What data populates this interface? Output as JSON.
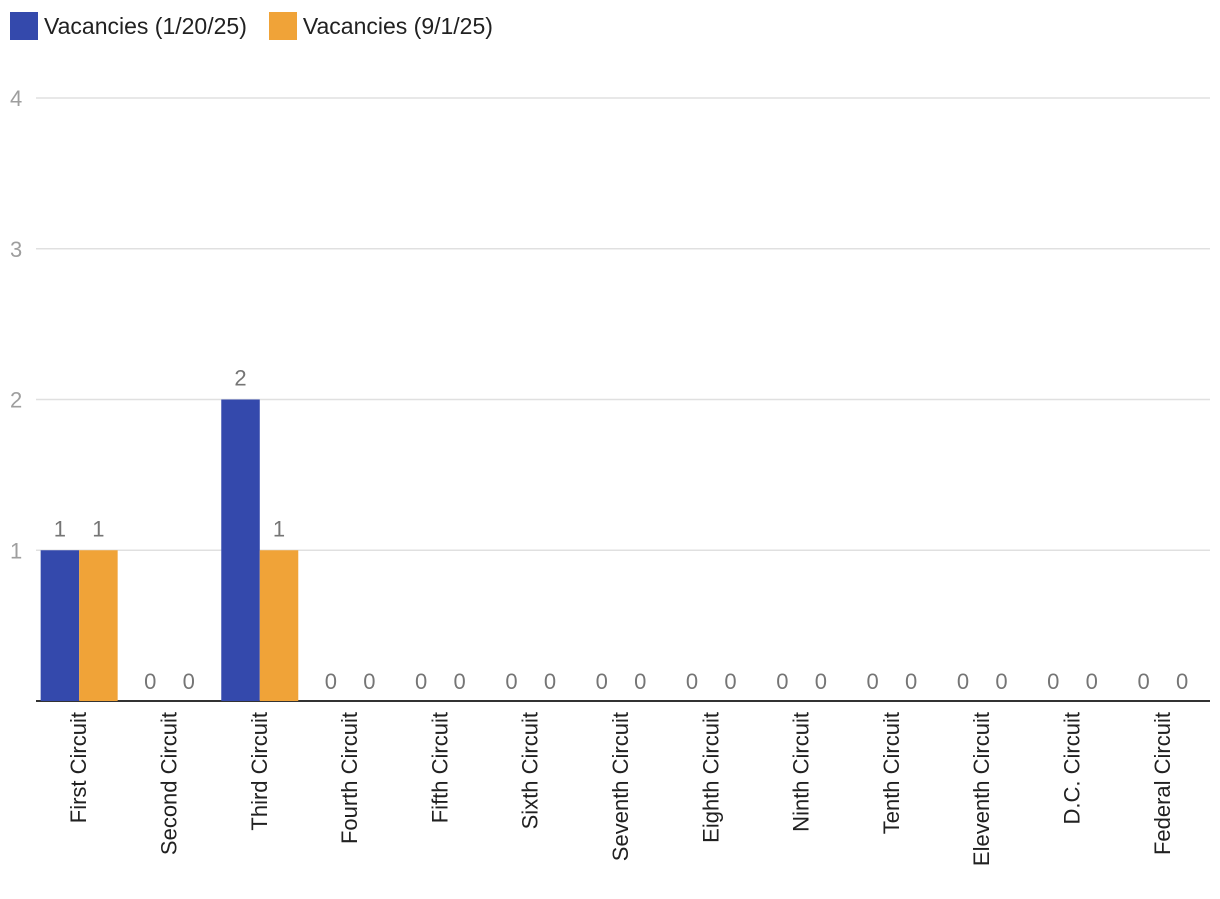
{
  "chart_data": {
    "type": "bar",
    "categories": [
      "First Circuit",
      "Second Circuit",
      "Third Circuit",
      "Fourth Circuit",
      "Fifth Circuit",
      "Sixth Circuit",
      "Seventh Circuit",
      "Eighth Circuit",
      "Ninth Circuit",
      "Tenth Circuit",
      "Eleventh Circuit",
      "D.C. Circuit",
      "Federal Circuit"
    ],
    "series": [
      {
        "name": "Vacancies (1/20/25)",
        "color": "#3449AC",
        "values": [
          1,
          0,
          2,
          0,
          0,
          0,
          0,
          0,
          0,
          0,
          0,
          0,
          0
        ]
      },
      {
        "name": "Vacancies (9/1/25)",
        "color": "#F0A338",
        "values": [
          1,
          0,
          1,
          0,
          0,
          0,
          0,
          0,
          0,
          0,
          0,
          0,
          0
        ]
      }
    ],
    "ylim": [
      0,
      4
    ],
    "yticks": [
      "1",
      "2",
      "3",
      "4"
    ],
    "grid": true,
    "legend_position": "top-left",
    "data_labels": true,
    "x_label_orientation": "vertical"
  }
}
